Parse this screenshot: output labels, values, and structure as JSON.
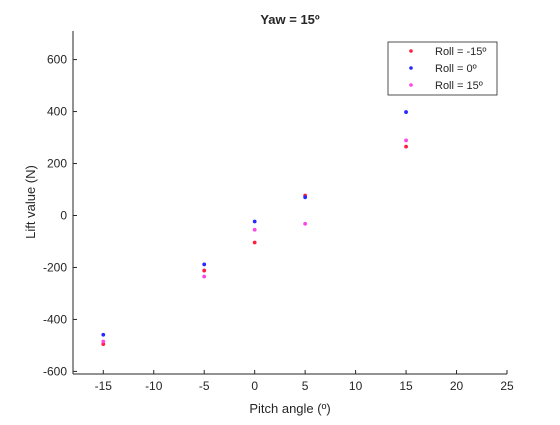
{
  "chart_data": {
    "type": "scatter",
    "title": "Yaw = 15º",
    "xlabel": "Pitch angle (º)",
    "ylabel": "Lift value (N)",
    "xlim": [
      -18,
      25
    ],
    "ylim": [
      -610,
      710
    ],
    "xticks": [
      -15,
      -10,
      -5,
      0,
      5,
      10,
      15,
      20,
      25
    ],
    "yticks": [
      -600,
      -400,
      -200,
      0,
      200,
      400,
      600
    ],
    "xtick_labels": [
      "-15",
      "-10",
      "-5",
      "0",
      "5",
      "10",
      "15",
      "20",
      "25"
    ],
    "ytick_labels": [
      "-600",
      "-400",
      "-200",
      "0",
      "200",
      "400",
      "600"
    ],
    "grid": false,
    "legend_position": "top-right",
    "series": [
      {
        "name": "Roll = -15º",
        "color": "#ff1f3d",
        "marker": "dot",
        "points": [
          [
            -15,
            -495
          ],
          [
            -5,
            -212
          ],
          [
            0,
            -104
          ],
          [
            5,
            77
          ],
          [
            15,
            265
          ]
        ]
      },
      {
        "name": "Roll = 0º",
        "color": "#2727ff",
        "marker": "dot",
        "points": [
          [
            -15,
            -459
          ],
          [
            -5,
            -188
          ],
          [
            0,
            -23
          ],
          [
            5,
            70
          ],
          [
            15,
            398
          ]
        ]
      },
      {
        "name": "Roll = 15º",
        "color": "#ff44e6",
        "marker": "dot",
        "points": [
          [
            -15,
            -485
          ],
          [
            -5,
            -235
          ],
          [
            0,
            -55
          ],
          [
            5,
            -32
          ],
          [
            15,
            289
          ]
        ]
      }
    ]
  }
}
